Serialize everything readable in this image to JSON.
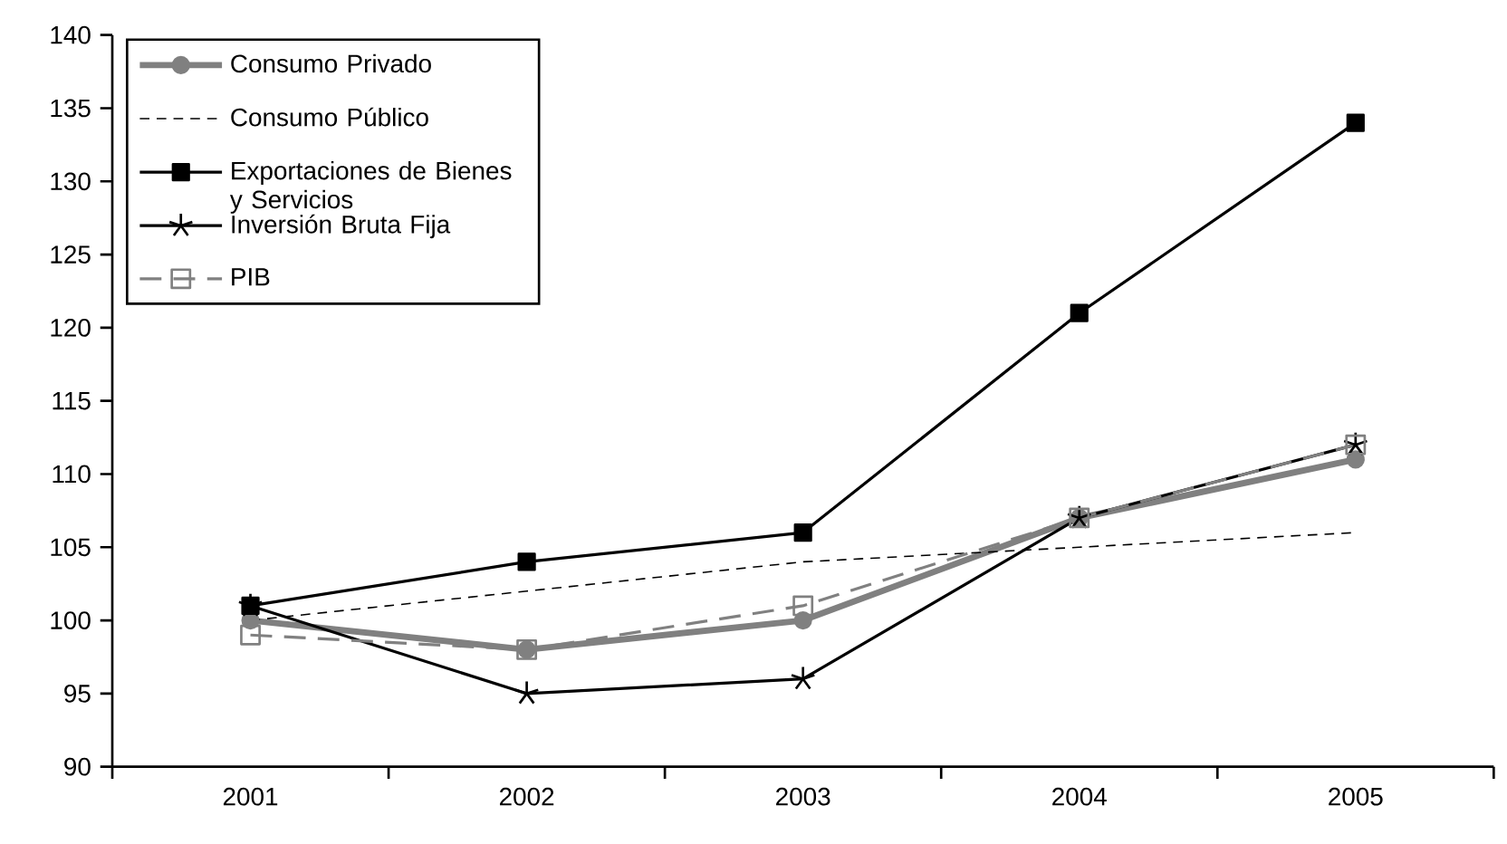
{
  "chart_data": {
    "type": "line",
    "categories": [
      "2001",
      "2002",
      "2003",
      "2004",
      "2005"
    ],
    "ylim": [
      90,
      140
    ],
    "yticks": [
      90,
      95,
      100,
      105,
      110,
      115,
      120,
      125,
      130,
      135,
      140
    ],
    "grid": false,
    "legend": "top left",
    "series": [
      {
        "name": "Consumo Privado",
        "color": "#808080",
        "marker": "circle",
        "line_style": "solid",
        "values": [
          100,
          98,
          100,
          107,
          111
        ]
      },
      {
        "name": "Consumo Público",
        "color": "#000000",
        "marker": "none",
        "line_style": "dashed",
        "values": [
          100,
          102,
          104,
          105,
          106
        ]
      },
      {
        "name": "Exportaciones de Bienes y Servicios",
        "color": "#000000",
        "marker": "square",
        "line_style": "solid",
        "values": [
          101,
          104,
          106,
          121,
          134
        ]
      },
      {
        "name": "Inversión Bruta Fija",
        "color": "#000000",
        "marker": "cross",
        "line_style": "solid",
        "values": [
          101,
          95,
          96,
          107,
          112
        ]
      },
      {
        "name": "PIB",
        "color": "#808080",
        "marker": "square",
        "line_style": "dashed",
        "values": [
          99,
          98,
          101,
          107,
          112
        ]
      }
    ]
  }
}
